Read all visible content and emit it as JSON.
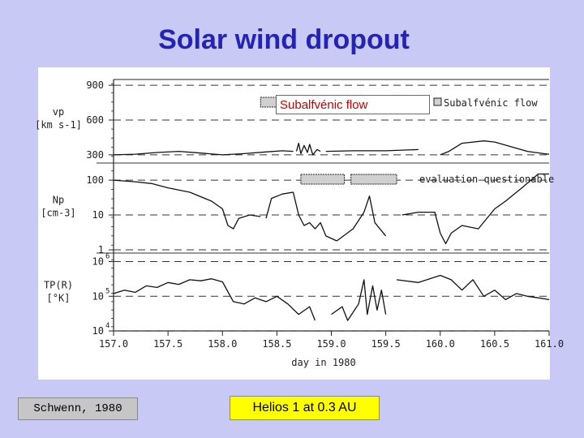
{
  "slide": {
    "title": "Solar wind dropout",
    "overlay_label": "Subalfvénic flow",
    "citation": "Schwenn, 1980",
    "caption": "Helios 1 at 0.3 AU"
  },
  "chart_data": {
    "type": "line",
    "xlabel": "day in 1980",
    "xlim": [
      157.0,
      161.0
    ],
    "x_ticks": [
      "157.0",
      "157.5",
      "158.0",
      "158.5",
      "159.0",
      "159.5",
      "160.0",
      "160.5",
      "161.0"
    ],
    "annotations": [
      "Subalfvénic flow",
      "evaluation questionable"
    ],
    "panels": [
      {
        "name": "vp",
        "ylabel_lines": [
          "vp",
          "[km s-1]"
        ],
        "scale": "linear",
        "ylim": [
          250,
          950
        ],
        "y_ticks": [
          {
            "value": 300,
            "label": "300"
          },
          {
            "value": 600,
            "label": "600"
          },
          {
            "value": 900,
            "label": "900"
          }
        ],
        "segments": [
          [
            [
              157.0,
              300
            ],
            [
              157.2,
              305
            ],
            [
              157.4,
              320
            ],
            [
              157.6,
              330
            ],
            [
              157.8,
              315
            ],
            [
              158.0,
              300
            ],
            [
              158.2,
              310
            ],
            [
              158.4,
              325
            ],
            [
              158.55,
              335
            ],
            [
              158.65,
              330
            ]
          ],
          [
            [
              158.68,
              330
            ],
            [
              158.7,
              400
            ],
            [
              158.72,
              310
            ],
            [
              158.75,
              380
            ],
            [
              158.78,
              320
            ],
            [
              158.8,
              390
            ],
            [
              158.83,
              300
            ],
            [
              158.87,
              345
            ],
            [
              158.9,
              330
            ]
          ],
          [
            [
              158.95,
              330
            ],
            [
              159.2,
              335
            ],
            [
              159.5,
              335
            ],
            [
              159.8,
              345
            ]
          ],
          [
            [
              160.0,
              300
            ],
            [
              160.08,
              330
            ],
            [
              160.2,
              400
            ],
            [
              160.4,
              420
            ],
            [
              160.5,
              410
            ],
            [
              160.65,
              370
            ],
            [
              160.8,
              330
            ],
            [
              160.95,
              310
            ],
            [
              161.0,
              305
            ]
          ]
        ]
      },
      {
        "name": "Np",
        "ylabel_lines": [
          "Np",
          "[cm-3]"
        ],
        "scale": "log",
        "ylim": [
          1,
          250
        ],
        "y_ticks": [
          {
            "value": 1,
            "label": "1"
          },
          {
            "value": 10,
            "label": "10"
          },
          {
            "value": 100,
            "label": "100"
          }
        ],
        "segments": [
          [
            [
              157.0,
              100
            ],
            [
              157.2,
              90
            ],
            [
              157.35,
              80
            ],
            [
              157.5,
              60
            ],
            [
              157.7,
              45
            ],
            [
              157.9,
              25
            ],
            [
              158.0,
              15
            ],
            [
              158.05,
              5
            ],
            [
              158.1,
              4
            ],
            [
              158.15,
              8
            ],
            [
              158.25,
              10
            ],
            [
              158.35,
              9
            ]
          ],
          [
            [
              158.4,
              8
            ],
            [
              158.45,
              30
            ],
            [
              158.55,
              40
            ],
            [
              158.65,
              45
            ],
            [
              158.7,
              10
            ],
            [
              158.75,
              5
            ],
            [
              158.8,
              6
            ],
            [
              158.85,
              4
            ],
            [
              158.9,
              6
            ],
            [
              158.95,
              2.5
            ],
            [
              159.05,
              1.8
            ]
          ],
          [
            [
              159.05,
              1.8
            ],
            [
              159.2,
              4
            ],
            [
              159.3,
              12
            ],
            [
              159.35,
              35
            ],
            [
              159.4,
              6
            ],
            [
              159.5,
              2.5
            ]
          ],
          [
            [
              159.65,
              10
            ],
            [
              159.8,
              12
            ],
            [
              159.95,
              12
            ],
            [
              160.0,
              3
            ],
            [
              160.05,
              1.5
            ],
            [
              160.1,
              3
            ],
            [
              160.2,
              5
            ],
            [
              160.35,
              4
            ],
            [
              160.5,
              15
            ],
            [
              160.6,
              25
            ],
            [
              160.75,
              60
            ],
            [
              160.9,
              150
            ],
            [
              161.0,
              150
            ]
          ]
        ]
      },
      {
        "name": "Tp",
        "ylabel_lines": [
          "TP(R)",
          "[°K]"
        ],
        "scale": "log",
        "ylim": [
          10000,
          1500000
        ],
        "y_ticks": [
          {
            "value": 10000,
            "label": "10"
          },
          {
            "value": 100000,
            "label": "10"
          },
          {
            "value": 1000000,
            "label": "10"
          }
        ],
        "y_tick_exponents": [
          "4",
          "5",
          "6"
        ],
        "segments": [
          [
            [
              157.0,
              120000
            ],
            [
              157.1,
              150000
            ],
            [
              157.2,
              130000
            ],
            [
              157.3,
              200000
            ],
            [
              157.4,
              180000
            ],
            [
              157.5,
              250000
            ],
            [
              157.6,
              220000
            ],
            [
              157.7,
              300000
            ],
            [
              157.8,
              280000
            ],
            [
              157.9,
              320000
            ],
            [
              158.0,
              260000
            ],
            [
              158.1,
              70000
            ],
            [
              158.2,
              60000
            ],
            [
              158.3,
              90000
            ],
            [
              158.4,
              70000
            ],
            [
              158.5,
              100000
            ],
            [
              158.6,
              60000
            ],
            [
              158.7,
              30000
            ],
            [
              158.8,
              50000
            ],
            [
              158.85,
              20000
            ]
          ],
          [
            [
              159.0,
              30000
            ],
            [
              159.1,
              50000
            ],
            [
              159.15,
              20000
            ],
            [
              159.25,
              60000
            ],
            [
              159.3,
              300000
            ],
            [
              159.33,
              30000
            ],
            [
              159.38,
              200000
            ],
            [
              159.42,
              40000
            ],
            [
              159.46,
              150000
            ],
            [
              159.5,
              30000
            ]
          ],
          [
            [
              159.6,
              300000
            ],
            [
              159.8,
              250000
            ],
            [
              160.0,
              400000
            ],
            [
              160.1,
              300000
            ],
            [
              160.2,
              150000
            ],
            [
              160.3,
              300000
            ],
            [
              160.4,
              100000
            ],
            [
              160.5,
              150000
            ],
            [
              160.6,
              80000
            ],
            [
              160.7,
              120000
            ],
            [
              160.8,
              100000
            ],
            [
              160.9,
              90000
            ],
            [
              161.0,
              80000
            ]
          ]
        ]
      }
    ],
    "shaded_bars": [
      {
        "panel": "vp",
        "x": [
          158.35,
          158.52
        ]
      },
      {
        "panel": "Np",
        "x": [
          158.72,
          159.12
        ]
      },
      {
        "panel": "Np",
        "x": [
          159.18,
          159.6
        ]
      }
    ]
  }
}
